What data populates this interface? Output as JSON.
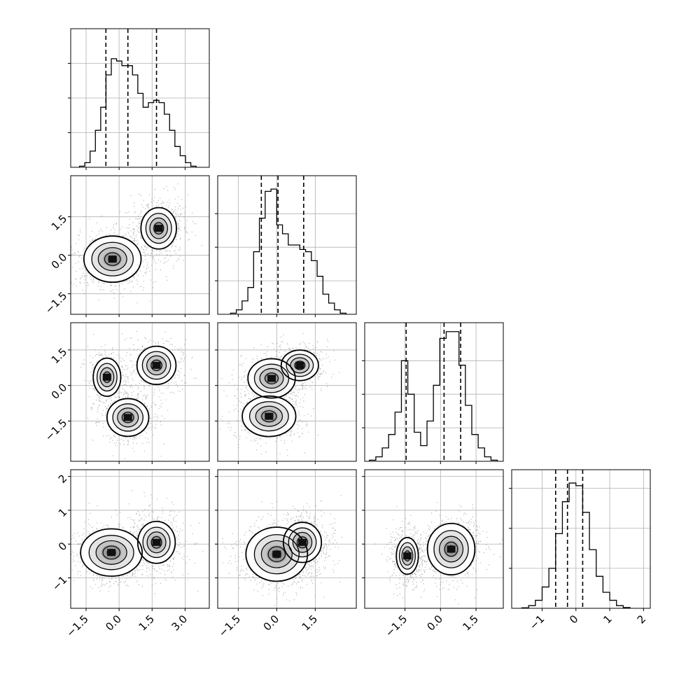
{
  "chart_data": {
    "type": "corner",
    "n_params": 4,
    "grid": true,
    "axes": [
      {
        "range": [
          -2.2,
          4.1
        ],
        "ticks": [
          -1.5,
          0.0,
          1.5,
          3.0
        ],
        "tick_labels": [
          "−1.5",
          "0.0",
          "1.5",
          "3.0"
        ]
      },
      {
        "range": [
          -2.3,
          3.1
        ],
        "ticks": [
          -1.5,
          0.0,
          1.5
        ],
        "tick_labels": [
          "−1.5",
          "0.0",
          "1.5"
        ]
      },
      {
        "range": [
          -3.2,
          2.65
        ],
        "ticks": [
          -1.5,
          0.0,
          1.5
        ],
        "tick_labels": [
          "−1.5",
          "0.0",
          "1.5"
        ]
      },
      {
        "range": [
          -1.9,
          2.2
        ],
        "ticks": [
          -1,
          0,
          1,
          2
        ],
        "tick_labels": [
          "−1",
          "0",
          "1",
          "2"
        ]
      }
    ],
    "quantiles": [
      [
        -0.6,
        0.4,
        1.7
      ],
      [
        -0.6,
        0.05,
        1.05
      ],
      [
        -1.45,
        0.15,
        0.85
      ],
      [
        -0.6,
        -0.25,
        0.2
      ]
    ],
    "histograms": [
      {
        "edges_range": [
          -1.8,
          3.5
        ],
        "counts": [
          0.5,
          2,
          7,
          16,
          26,
          40,
          47,
          46,
          44,
          44,
          40,
          32,
          26,
          28,
          29,
          28,
          23,
          16,
          9,
          5,
          2,
          0.5
        ]
      },
      {
        "edges_range": [
          -1.8,
          2.7
        ],
        "counts": [
          0.5,
          2,
          6,
          12,
          28,
          43,
          55,
          56,
          40,
          36,
          31,
          31,
          29,
          28,
          24,
          17,
          9,
          5,
          2,
          0.5
        ]
      },
      {
        "edges_range": [
          -3.0,
          2.4
        ],
        "counts": [
          0.5,
          2,
          6,
          12,
          22,
          45,
          30,
          13,
          7,
          18,
          34,
          55,
          58,
          58,
          43,
          25,
          12,
          6,
          2,
          0.5
        ]
      },
      {
        "edges_range": [
          -1.6,
          1.6
        ],
        "counts": [
          0.2,
          1,
          3,
          8,
          15,
          28,
          40,
          47,
          46,
          36,
          22,
          12,
          6,
          3,
          1,
          0.3
        ]
      }
    ],
    "hist_ymax": [
      60,
      62,
      62,
      52
    ],
    "hist_yticks": [
      15,
      30,
      45
    ],
    "pair_modes": {
      "1-0": [
        {
          "c": [
            -0.3,
            -0.15
          ],
          "s": [
            0.65,
            0.45
          ],
          "w": 1.0
        },
        {
          "c": [
            1.8,
            1.05
          ],
          "s": [
            0.5,
            0.5
          ],
          "w": 0.65
        }
      ],
      "2-0": [
        {
          "c": [
            -0.55,
            0.35
          ],
          "s": [
            0.35,
            0.45
          ],
          "w": 0.8
        },
        {
          "c": [
            0.4,
            -1.35
          ],
          "s": [
            0.5,
            0.42
          ],
          "w": 0.9
        },
        {
          "c": [
            1.7,
            0.85
          ],
          "s": [
            0.55,
            0.5
          ],
          "w": 0.65
        }
      ],
      "2-1": [
        {
          "c": [
            -0.2,
            0.3
          ],
          "s": [
            0.5,
            0.45
          ],
          "w": 0.85
        },
        {
          "c": [
            0.9,
            0.85
          ],
          "s": [
            0.45,
            0.4
          ],
          "w": 0.65
        },
        {
          "c": [
            -0.3,
            -1.3
          ],
          "s": [
            0.55,
            0.45
          ],
          "w": 0.9
        }
      ],
      "3-0": [
        {
          "c": [
            -0.35,
            -0.25
          ],
          "s": [
            0.7,
            0.35
          ],
          "w": 1.0
        },
        {
          "c": [
            1.7,
            0.05
          ],
          "s": [
            0.55,
            0.4
          ],
          "w": 0.6
        }
      ],
      "3-1": [
        {
          "c": [
            0.0,
            -0.3
          ],
          "s": [
            0.6,
            0.4
          ],
          "w": 1.0
        },
        {
          "c": [
            1.0,
            0.05
          ],
          "s": [
            0.5,
            0.4
          ],
          "w": 0.55
        }
      ],
      "3-2": [
        {
          "c": [
            -1.4,
            -0.35
          ],
          "s": [
            0.3,
            0.35
          ],
          "w": 0.6
        },
        {
          "c": [
            0.45,
            -0.15
          ],
          "s": [
            0.5,
            0.38
          ],
          "w": 1.0
        }
      ]
    }
  }
}
